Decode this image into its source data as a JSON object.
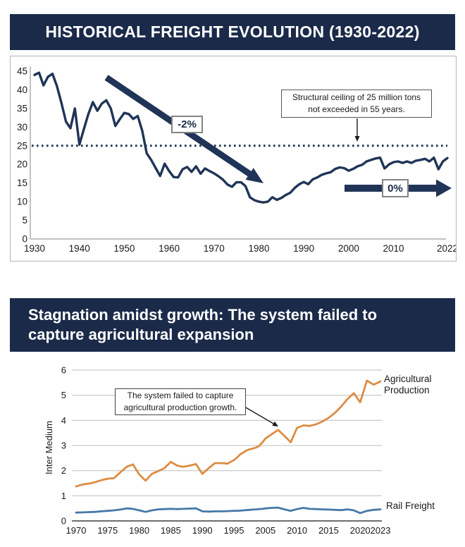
{
  "colors": {
    "header_bg": "#1b2a49",
    "navy_line": "#203457",
    "orange": "#dd8c43",
    "blue": "#4579a7",
    "grid": "#bdbdbd",
    "axis": "#9a9a9a",
    "axis_dark": "#6e6e6e",
    "tick_text": "#1a1a1a",
    "annotation_arrow": "#1a1a1a"
  },
  "section1": {
    "title": "HISTORICAL FREIGHT EVOLUTION (1930-2022)"
  },
  "section2": {
    "title": "Stagnation amidst growth: The system failed to capture agricultural expansion"
  },
  "chart_data": [
    {
      "type": "line",
      "title": "HISTORICAL FREIGHT EVOLUTION (1930-2022)",
      "ylabel": "",
      "ylim": [
        0,
        45
      ],
      "yticks": [
        0,
        5,
        10,
        15,
        20,
        25,
        30,
        35,
        40,
        45
      ],
      "xtick_labels": [
        "1930",
        "1940",
        "1950",
        "1960",
        "1970",
        "1980",
        "1990",
        "2000",
        "2010",
        "2022"
      ],
      "xticks": [
        1930,
        1940,
        1950,
        1960,
        1970,
        1980,
        1990,
        2000,
        2010,
        2022
      ],
      "years": {
        "start": 1930,
        "end": 2022
      },
      "values": [
        44.0,
        44.6,
        41.2,
        43.5,
        44.3,
        41.0,
        36.5,
        31.5,
        29.7,
        35.0,
        25.3,
        29.5,
        33.5,
        36.7,
        34.4,
        36.3,
        37.2,
        35.0,
        30.3,
        32.1,
        33.8,
        33.5,
        32.2,
        33.0,
        29.0,
        23.0,
        21.2,
        19.0,
        16.9,
        20.2,
        18.2,
        16.6,
        16.5,
        18.7,
        19.3,
        18.0,
        19.5,
        17.5,
        18.9,
        18.2,
        17.6,
        16.8,
        15.9,
        14.6,
        14.0,
        15.2,
        15.2,
        14.2,
        11.2,
        10.4,
        10.0,
        9.8,
        10.0,
        11.2,
        10.5,
        11.0,
        11.8,
        12.4,
        13.7,
        14.7,
        15.3,
        14.7,
        16.0,
        16.5,
        17.2,
        17.6,
        17.9,
        18.8,
        19.2,
        19.0,
        18.3,
        18.8,
        19.5,
        19.9,
        20.8,
        21.2,
        21.6,
        21.8,
        18.9,
        20.0,
        20.6,
        20.8,
        20.4,
        20.8,
        20.4,
        21.0,
        21.2,
        21.5,
        20.8,
        21.8,
        18.7,
        20.8,
        21.7
      ],
      "ceiling_value": 25,
      "grid": false,
      "legend": "none",
      "annotations": {
        "ceiling_note": "Structural ceiling of 25 million tons not exceeded in 55 years.",
        "decline_label": "-2%",
        "flat_label": "0%"
      }
    },
    {
      "type": "line",
      "ylabel": "Inter Medium",
      "ylim": [
        0,
        6
      ],
      "yticks": [
        0,
        1,
        2,
        3,
        4,
        5,
        6
      ],
      "xtick_labels": [
        "1970",
        "1975",
        "1980",
        "1985",
        "1990",
        "1995",
        "2005",
        "2010",
        "2015",
        "2020",
        "2023"
      ],
      "xticks": [
        1970,
        1975,
        1980,
        1985,
        1990,
        1995,
        2005,
        2010,
        2015,
        2020,
        2023
      ],
      "years": {
        "start": 1970,
        "end": 2023
      },
      "grid": true,
      "legend_position": "right",
      "series": [
        {
          "name": "Agricultural Production",
          "color": "#dd8c43",
          "values": [
            1.37,
            1.45,
            1.48,
            1.54,
            1.62,
            1.68,
            1.7,
            1.93,
            2.15,
            2.25,
            1.85,
            1.6,
            1.87,
            1.98,
            2.1,
            2.35,
            2.2,
            2.15,
            2.2,
            2.26,
            1.87,
            2.1,
            2.3,
            2.3,
            2.28,
            2.42,
            2.52,
            2.65,
            2.72,
            2.8,
            2.85,
            2.88,
            2.92,
            2.98,
            3.12,
            3.28,
            3.45,
            3.62,
            3.38,
            3.13,
            3.7,
            3.8,
            3.78,
            3.84,
            3.95,
            4.1,
            4.3,
            4.55,
            4.85,
            5.08,
            4.72,
            5.58,
            5.42,
            5.55
          ]
        },
        {
          "name": "Rail Freight",
          "color": "#4579a7",
          "values": [
            0.33,
            0.34,
            0.35,
            0.36,
            0.38,
            0.4,
            0.42,
            0.45,
            0.5,
            0.48,
            0.42,
            0.36,
            0.42,
            0.46,
            0.47,
            0.48,
            0.47,
            0.48,
            0.49,
            0.5,
            0.38,
            0.37,
            0.38,
            0.38,
            0.39,
            0.4,
            0.4,
            0.41,
            0.42,
            0.43,
            0.44,
            0.45,
            0.46,
            0.47,
            0.48,
            0.5,
            0.52,
            0.53,
            0.46,
            0.4,
            0.47,
            0.52,
            0.48,
            0.47,
            0.46,
            0.45,
            0.44,
            0.43,
            0.46,
            0.42,
            0.31,
            0.4,
            0.44,
            0.46
          ]
        }
      ],
      "annotations": {
        "note": "The system failed to capture agricultural production growth."
      }
    }
  ]
}
